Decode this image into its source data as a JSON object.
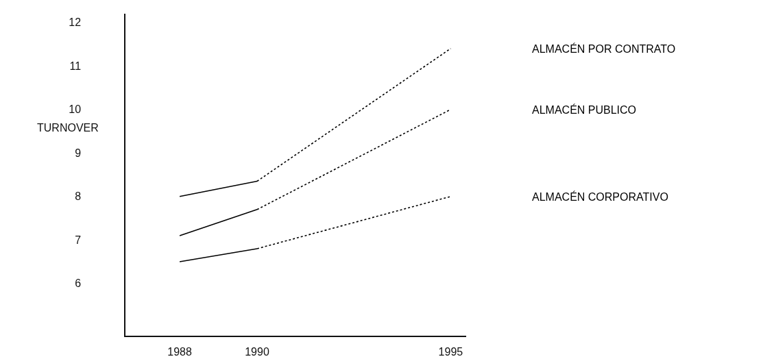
{
  "chart_data": {
    "type": "line",
    "ylabel": "TURNOVER",
    "xlim": [
      1986.6,
      1995.4
    ],
    "xticks": [
      1988,
      1990,
      1995
    ],
    "ylim": [
      4.8,
      12.2
    ],
    "yticks": [
      6,
      7,
      8,
      9,
      10,
      11,
      12
    ],
    "grid": false,
    "legend": false,
    "marker": "none",
    "series": [
      {
        "color": "#000000",
        "line_style": "solid",
        "x": [
          1988,
          1990
        ],
        "values": [
          8.0,
          8.35
        ]
      },
      {
        "color": "#000000",
        "line_style": "solid",
        "x": [
          1988,
          1990
        ],
        "values": [
          7.1,
          7.7
        ]
      },
      {
        "color": "#000000",
        "line_style": "solid",
        "x": [
          1988,
          1990
        ],
        "values": [
          6.5,
          6.8
        ]
      },
      {
        "name": "ALMACÉN POR CONTRATO",
        "color": "#000000",
        "line_style": "dotted",
        "x": [
          1990,
          1995
        ],
        "values": [
          8.35,
          11.4
        ]
      },
      {
        "name": "ALMACÉN PUBLICO",
        "color": "#000000",
        "line_style": "dotted",
        "x": [
          1990,
          1995
        ],
        "values": [
          7.7,
          10.0
        ]
      },
      {
        "name": "ALMACÉN CORPORATIVO",
        "color": "#000000",
        "line_style": "dotted",
        "x": [
          1990,
          1995
        ],
        "values": [
          6.8,
          8.0
        ]
      }
    ]
  }
}
